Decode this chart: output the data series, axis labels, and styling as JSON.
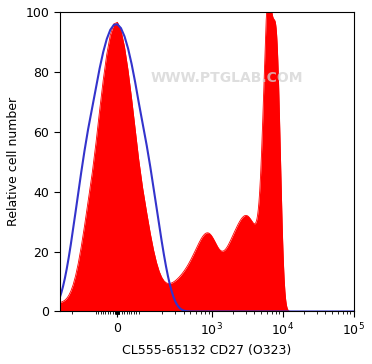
{
  "ylabel": "Relative cell number",
  "xlabel": "CL555-65132 CD27 (O323)",
  "ylim": [
    0,
    100
  ],
  "yticks": [
    0,
    20,
    40,
    60,
    80,
    100
  ],
  "watermark": "WWW.PTGLAB.COM",
  "red_fill_color": "#FF0000",
  "blue_line_color": "#3333CC",
  "background_color": "#FFFFFF",
  "figsize": [
    3.72,
    3.64
  ],
  "dpi": 100
}
